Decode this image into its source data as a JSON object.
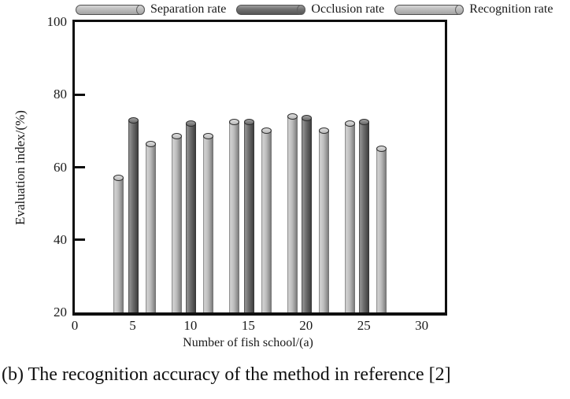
{
  "caption": "(b) The recognition accuracy of the method in reference [2]",
  "colors": {
    "light_bar": "#bdbdbd",
    "dark_bar": "#6d6d6d",
    "axis": "#0f0f0f",
    "background": "#ffffff",
    "text": "#1a1a1a"
  },
  "chart_data": {
    "type": "bar",
    "title": "",
    "xlabel": "Number of fish school/(a)",
    "ylabel": "Evaluation index/(%)",
    "xlim": [
      0,
      32
    ],
    "ylim": [
      20,
      100
    ],
    "xticks": [
      0,
      5,
      10,
      15,
      20,
      25,
      30
    ],
    "yticks": [
      20,
      40,
      60,
      80,
      100
    ],
    "grid": false,
    "legend_position": "top",
    "bar_style": "3d-cylinder",
    "categories": [
      5,
      10,
      15,
      20,
      25
    ],
    "series": [
      {
        "name": "Separation rate",
        "shade": "light",
        "color": "#bdbdbd",
        "values": [
          57,
          68.5,
          72.5,
          74,
          72
        ]
      },
      {
        "name": "Occlusion rate",
        "shade": "dark",
        "color": "#6d6d6d",
        "values": [
          73,
          72,
          72.5,
          73.5,
          72.5
        ]
      },
      {
        "name": "Recognition rate",
        "shade": "light",
        "color": "#bdbdbd",
        "values": [
          66.5,
          68.5,
          70,
          70,
          65
        ]
      }
    ]
  }
}
